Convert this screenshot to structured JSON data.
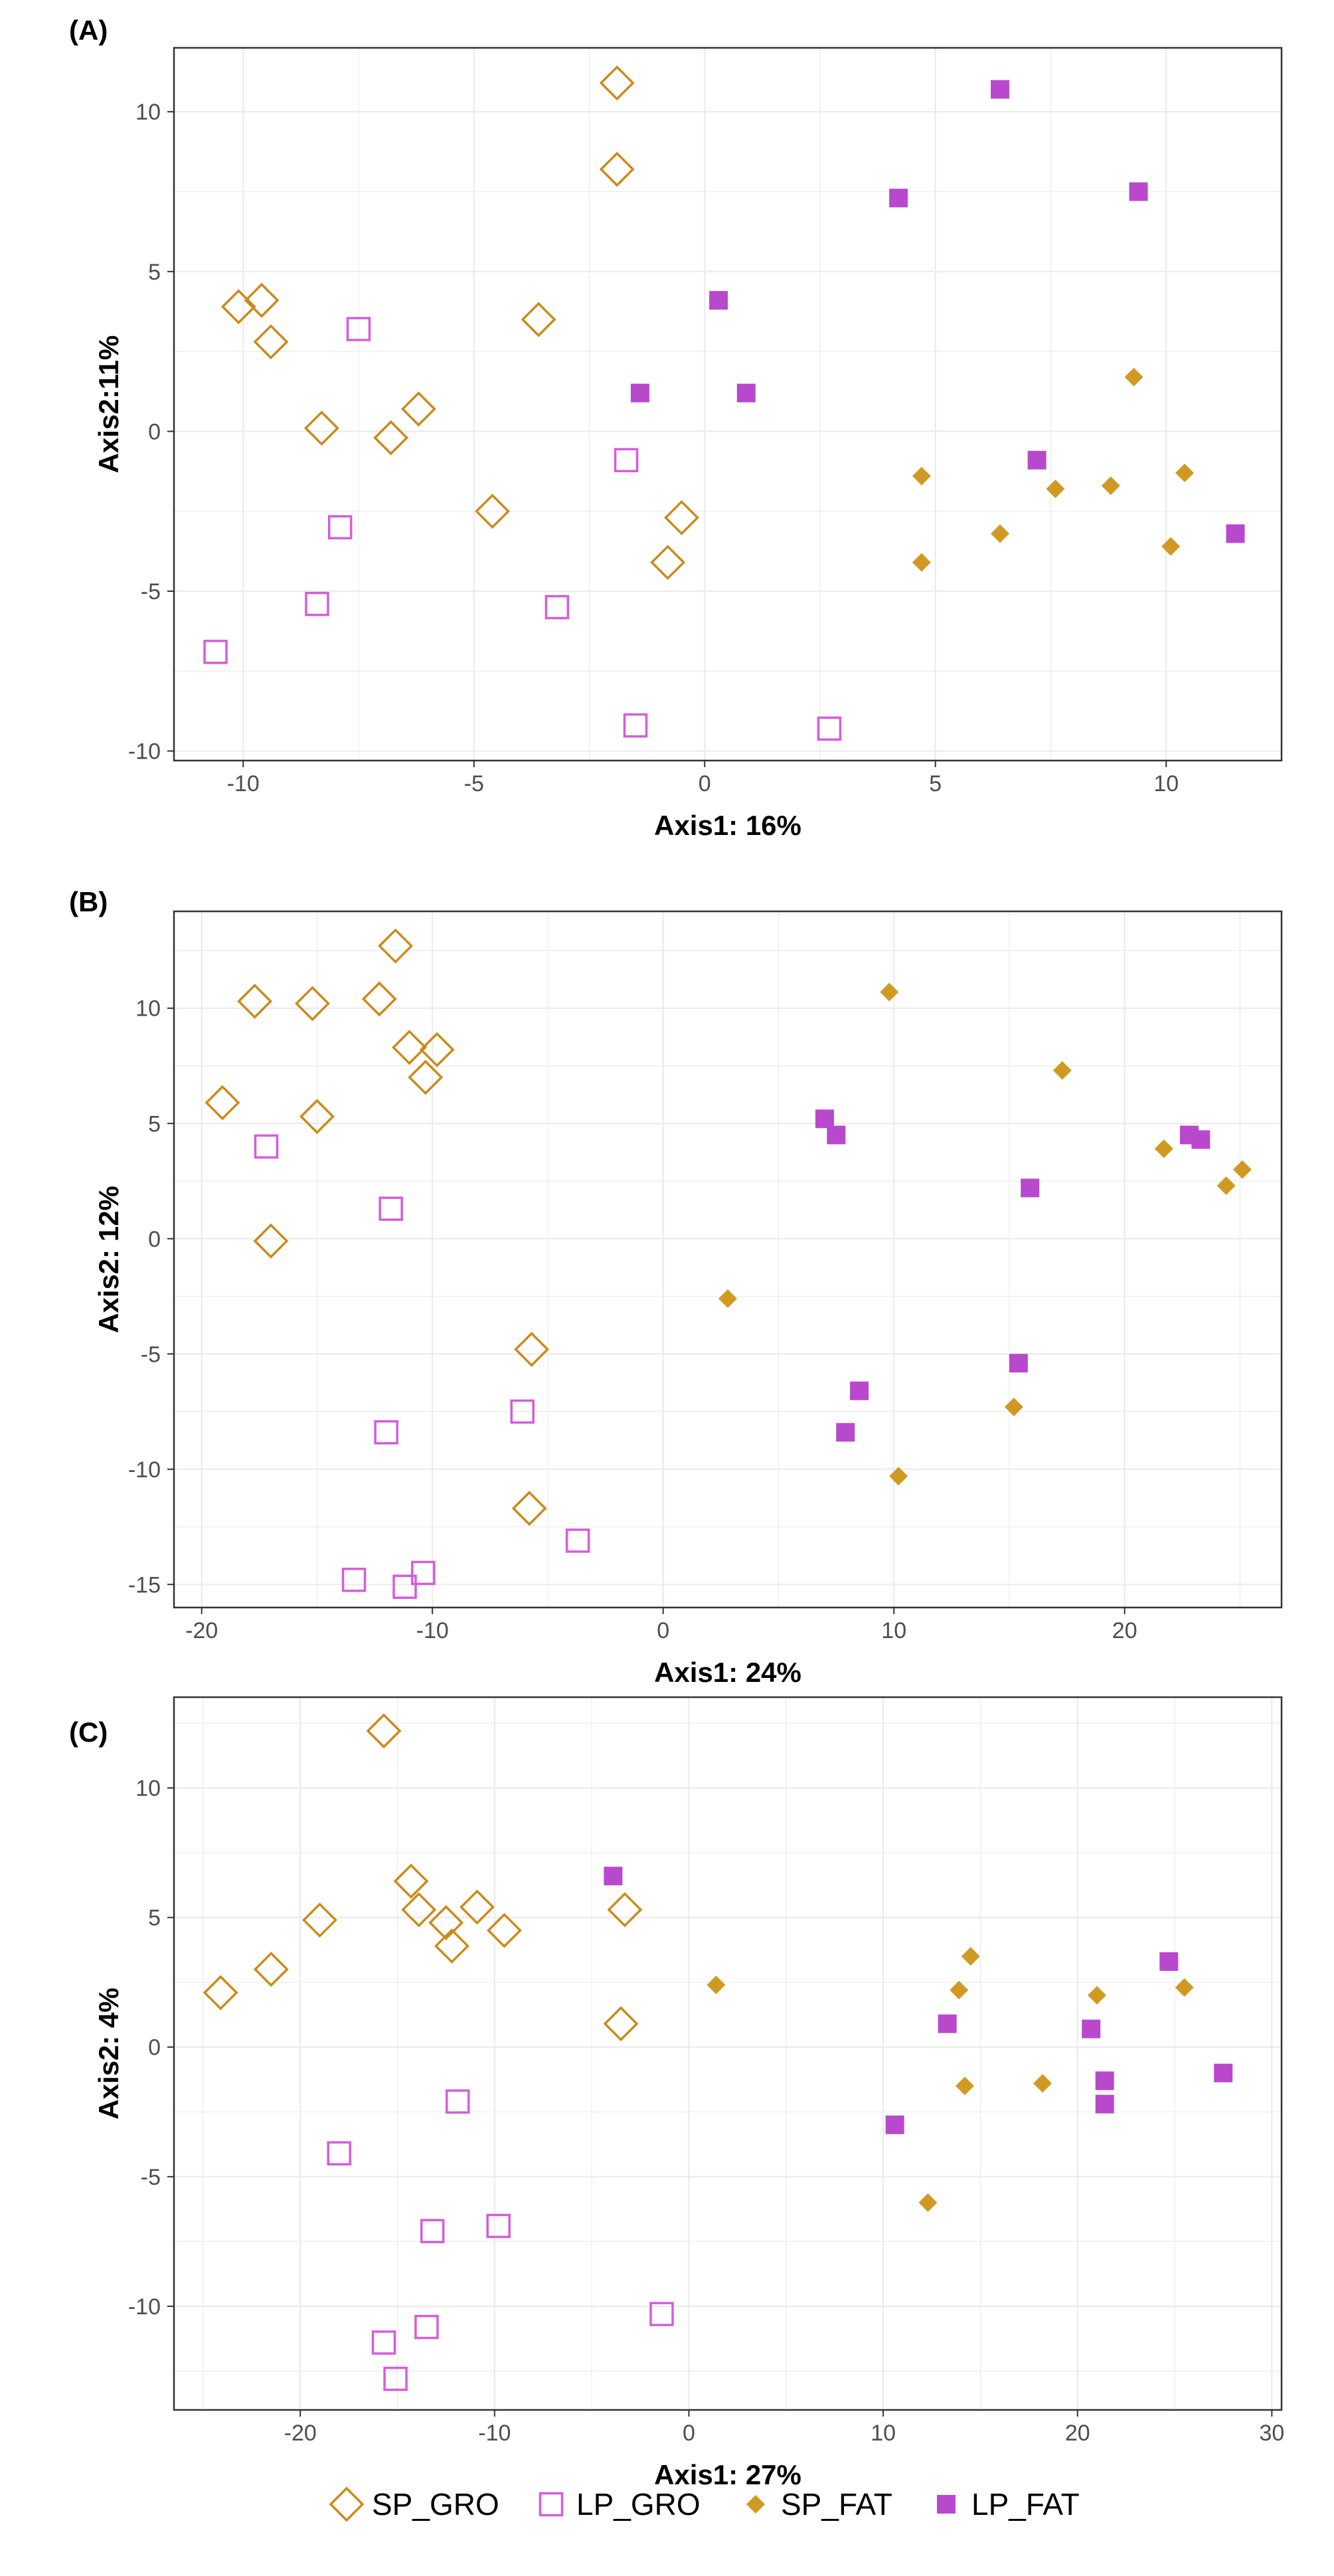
{
  "chart_data": [
    {
      "type": "scatter",
      "title": "(A)",
      "xlabel": "Axis1: 16%",
      "ylabel": "Axis2:11%",
      "xlim": [
        -11.5,
        12.5
      ],
      "ylim": [
        -10.3,
        12.0
      ],
      "xticks": [
        -10,
        -5,
        0,
        5,
        10
      ],
      "yticks": [
        -10,
        -5,
        0,
        5,
        10
      ],
      "grid": true,
      "series": [
        {
          "name": "SP_GRO",
          "points": [
            [
              -1.9,
              10.9
            ],
            [
              -1.9,
              8.2
            ],
            [
              -10.1,
              3.9
            ],
            [
              -9.6,
              4.1
            ],
            [
              -9.4,
              2.8
            ],
            [
              -3.6,
              3.5
            ],
            [
              -6.2,
              0.7
            ],
            [
              -6.8,
              -0.2
            ],
            [
              -8.3,
              0.1
            ],
            [
              -4.6,
              -2.5
            ],
            [
              -0.5,
              -2.7
            ],
            [
              -0.8,
              -4.1
            ]
          ]
        },
        {
          "name": "LP_GRO",
          "points": [
            [
              -7.5,
              3.2
            ],
            [
              -1.7,
              -0.9
            ],
            [
              -7.9,
              -3.0
            ],
            [
              -8.4,
              -5.4
            ],
            [
              -3.2,
              -5.5
            ],
            [
              -10.6,
              -6.9
            ],
            [
              -1.5,
              -9.2
            ],
            [
              2.7,
              -9.3
            ]
          ]
        },
        {
          "name": "SP_FAT",
          "points": [
            [
              9.3,
              1.7
            ],
            [
              4.7,
              -1.4
            ],
            [
              7.6,
              -1.8
            ],
            [
              8.8,
              -1.7
            ],
            [
              10.4,
              -1.3
            ],
            [
              6.4,
              -3.2
            ],
            [
              4.7,
              -4.1
            ],
            [
              10.1,
              -3.6
            ]
          ]
        },
        {
          "name": "LP_FAT",
          "points": [
            [
              6.4,
              10.7
            ],
            [
              4.2,
              7.3
            ],
            [
              9.4,
              7.5
            ],
            [
              0.3,
              4.1
            ],
            [
              -1.4,
              1.2
            ],
            [
              0.9,
              1.2
            ],
            [
              7.2,
              -0.9
            ],
            [
              11.5,
              -3.2
            ]
          ]
        }
      ]
    },
    {
      "type": "scatter",
      "title": "(B)",
      "xlabel": "Axis1: 24%",
      "ylabel": "Axis2: 12%",
      "xlim": [
        -21.2,
        26.8
      ],
      "ylim": [
        -16.0,
        14.2
      ],
      "xticks": [
        -20,
        -10,
        0,
        10,
        20
      ],
      "yticks": [
        -15,
        -10,
        -5,
        0,
        5,
        10
      ],
      "grid": true,
      "series": [
        {
          "name": "SP_GRO",
          "points": [
            [
              -11.6,
              12.7
            ],
            [
              -17.7,
              10.3
            ],
            [
              -15.2,
              10.2
            ],
            [
              -12.3,
              10.4
            ],
            [
              -11.0,
              8.3
            ],
            [
              -9.8,
              8.2
            ],
            [
              -10.3,
              7.0
            ],
            [
              -19.1,
              5.9
            ],
            [
              -15.0,
              5.3
            ],
            [
              -17.0,
              -0.1
            ],
            [
              -5.7,
              -4.8
            ],
            [
              -5.8,
              -11.7
            ]
          ]
        },
        {
          "name": "LP_GRO",
          "points": [
            [
              -17.2,
              4.0
            ],
            [
              -11.8,
              1.3
            ],
            [
              -6.1,
              -7.5
            ],
            [
              -12.0,
              -8.4
            ],
            [
              -3.7,
              -13.1
            ],
            [
              -13.4,
              -14.8
            ],
            [
              -10.4,
              -14.5
            ],
            [
              -11.2,
              -15.1
            ]
          ]
        },
        {
          "name": "SP_FAT",
          "points": [
            [
              9.8,
              10.7
            ],
            [
              17.3,
              7.3
            ],
            [
              21.7,
              3.9
            ],
            [
              24.4,
              2.3
            ],
            [
              25.1,
              3.0
            ],
            [
              2.8,
              -2.6
            ],
            [
              15.2,
              -7.3
            ],
            [
              10.2,
              -10.3
            ]
          ]
        },
        {
          "name": "LP_FAT",
          "points": [
            [
              7.0,
              5.2
            ],
            [
              7.5,
              4.5
            ],
            [
              15.9,
              2.2
            ],
            [
              22.8,
              4.5
            ],
            [
              23.3,
              4.3
            ],
            [
              15.4,
              -5.4
            ],
            [
              8.5,
              -6.6
            ],
            [
              7.9,
              -8.4
            ]
          ]
        }
      ]
    },
    {
      "type": "scatter",
      "title": "(C)",
      "xlabel": "Axis1: 27%",
      "ylabel": "Axis2: 4%",
      "xlim": [
        -26.5,
        30.5
      ],
      "ylim": [
        -14.0,
        13.5
      ],
      "xticks": [
        -20,
        -10,
        0,
        10,
        20,
        30
      ],
      "yticks": [
        -10,
        -5,
        0,
        5,
        10
      ],
      "grid": true,
      "series": [
        {
          "name": "SP_GRO",
          "points": [
            [
              -15.7,
              12.2
            ],
            [
              -14.3,
              6.4
            ],
            [
              -13.9,
              5.3
            ],
            [
              -12.5,
              4.8
            ],
            [
              -12.2,
              3.9
            ],
            [
              -10.9,
              5.4
            ],
            [
              -9.5,
              4.5
            ],
            [
              -19.0,
              4.9
            ],
            [
              -21.5,
              3.0
            ],
            [
              -24.1,
              2.1
            ],
            [
              -3.3,
              5.3
            ],
            [
              -3.5,
              0.9
            ]
          ]
        },
        {
          "name": "LP_GRO",
          "points": [
            [
              -11.9,
              -2.1
            ],
            [
              -18.0,
              -4.1
            ],
            [
              -13.2,
              -7.1
            ],
            [
              -9.8,
              -6.9
            ],
            [
              -15.7,
              -11.4
            ],
            [
              -13.5,
              -10.8
            ],
            [
              -15.1,
              -12.8
            ],
            [
              -1.4,
              -10.3
            ]
          ]
        },
        {
          "name": "SP_FAT",
          "points": [
            [
              1.4,
              2.4
            ],
            [
              14.5,
              3.5
            ],
            [
              13.9,
              2.2
            ],
            [
              21.0,
              2.0
            ],
            [
              25.5,
              2.3
            ],
            [
              14.2,
              -1.5
            ],
            [
              18.2,
              -1.4
            ],
            [
              12.3,
              -6.0
            ]
          ]
        },
        {
          "name": "LP_FAT",
          "points": [
            [
              -3.9,
              6.6
            ],
            [
              13.3,
              0.9
            ],
            [
              24.7,
              3.3
            ],
            [
              20.7,
              0.7
            ],
            [
              21.4,
              -1.3
            ],
            [
              21.4,
              -2.2
            ],
            [
              27.5,
              -1.0
            ],
            [
              10.6,
              -3.0
            ]
          ]
        }
      ]
    }
  ],
  "legend": {
    "position": "bottom",
    "items": [
      {
        "label": "SP_GRO",
        "shape": "diamond-open",
        "color": "#CC8A1A"
      },
      {
        "label": "LP_GRO",
        "shape": "square-open",
        "color": "#D65CDB"
      },
      {
        "label": "SP_FAT",
        "shape": "diamond-filled",
        "color": "#D09A22"
      },
      {
        "label": "LP_FAT",
        "shape": "square-filled",
        "color": "#B849CC"
      }
    ]
  },
  "style": {
    "gridColor": "#ebebeb",
    "borderColor": "#333333"
  }
}
